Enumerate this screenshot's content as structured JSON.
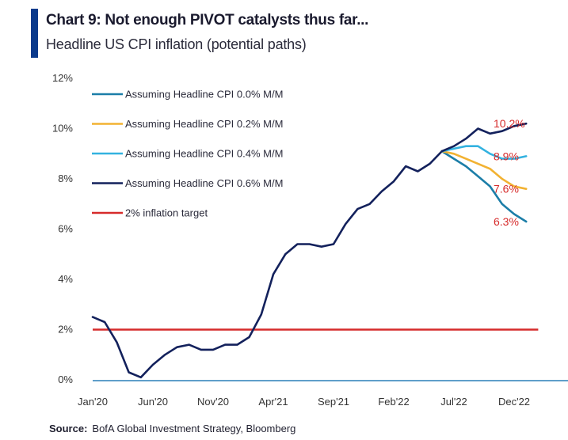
{
  "title": "Chart 9: Not enough PIVOT catalysts thus far...",
  "subtitle": "Headline US CPI inflation (potential paths)",
  "source_label": "Source:",
  "source_text": "BofA Global Investment Strategy, Bloomberg",
  "chart_data": {
    "type": "line",
    "title": "Chart 9: Not enough PIVOT catalysts thus far...",
    "subtitle": "Headline US CPI inflation (potential paths)",
    "xlabel": "",
    "ylabel": "",
    "ylim": [
      0,
      12
    ],
    "y_ticks": [
      "0%",
      "2%",
      "4%",
      "6%",
      "8%",
      "10%",
      "12%"
    ],
    "x_ticks": [
      "Jan'20",
      "Jun'20",
      "Nov'20",
      "Apr'21",
      "Sep'21",
      "Feb'22",
      "Jul'22",
      "Dec'22"
    ],
    "x_tick_index": [
      0,
      5,
      10,
      15,
      20,
      25,
      30,
      35
    ],
    "x_axis_extent": 41,
    "legend_position": "top-left",
    "history": {
      "name": "Headline US CPI",
      "color": "#13215c",
      "values": [
        2.5,
        2.3,
        1.5,
        0.3,
        0.1,
        0.6,
        1.0,
        1.3,
        1.4,
        1.2,
        1.2,
        1.4,
        1.4,
        1.7,
        2.6,
        4.2,
        5.0,
        5.4,
        5.4,
        5.3,
        5.4,
        6.2,
        6.8,
        7.0,
        7.5,
        7.9,
        8.5,
        8.3,
        8.6,
        9.1
      ]
    },
    "series": [
      {
        "name": "Assuming Headline CPI 0.0% M/M",
        "color": "#1c7ea8",
        "values": [
          9.1,
          8.8,
          8.5,
          8.1,
          7.7,
          7.0,
          6.6,
          6.3
        ],
        "end_label": "6.3%"
      },
      {
        "name": "Assuming Headline CPI 0.2% M/M",
        "color": "#f2b232",
        "values": [
          9.1,
          9.0,
          8.8,
          8.6,
          8.4,
          8.0,
          7.7,
          7.6
        ],
        "end_label": "7.6%"
      },
      {
        "name": "Assuming Headline CPI 0.4% M/M",
        "color": "#33b2e0",
        "values": [
          9.1,
          9.2,
          9.3,
          9.3,
          9.0,
          8.8,
          8.8,
          8.9
        ],
        "end_label": "8.9%"
      },
      {
        "name": "Assuming Headline CPI 0.6% M/M",
        "color": "#13215c",
        "values": [
          9.1,
          9.3,
          9.6,
          10.0,
          9.8,
          9.9,
          10.1,
          10.2
        ],
        "end_label": "10.2%"
      }
    ],
    "forecast_start_index": 29,
    "target": {
      "name": "2% inflation target",
      "value": 2,
      "color": "#d62b2b",
      "start_index": 0,
      "end_index": 37
    },
    "end_label_color": "#d62b2b",
    "axis_color": "#2a7fb8",
    "grid": false
  }
}
